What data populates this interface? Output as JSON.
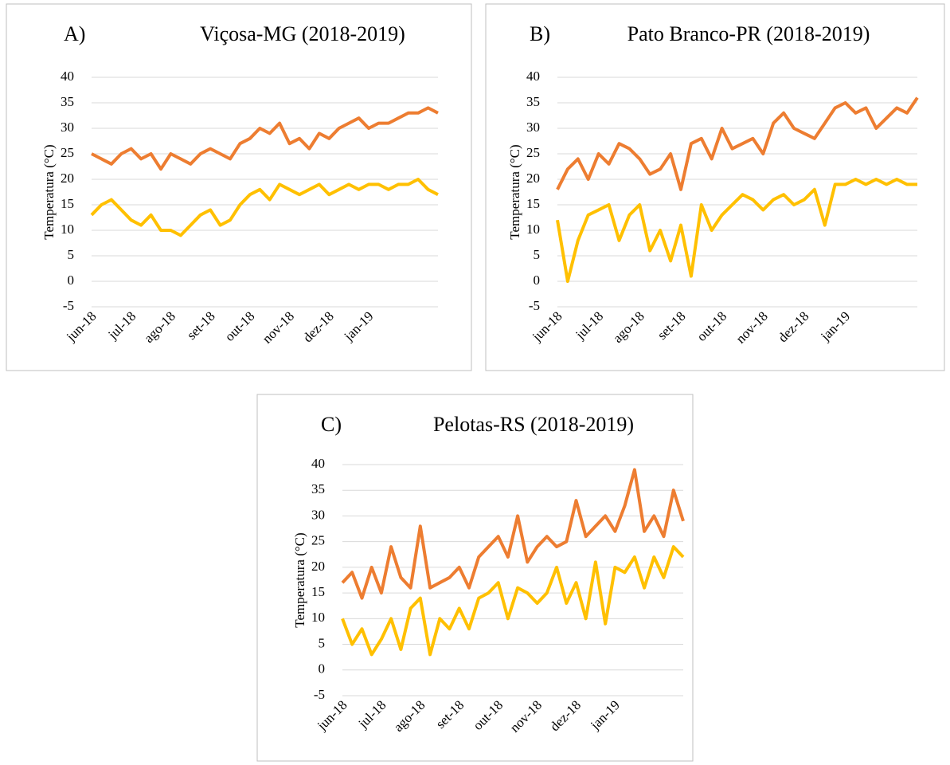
{
  "chart_data": [
    {
      "type": "line",
      "label": "A)",
      "title": "Viçosa-MG (2018-2019)",
      "ylabel": "Temperatura (°C)",
      "categories": [
        "jun-18",
        null,
        null,
        null,
        "jul-18",
        null,
        null,
        null,
        "ago-18",
        null,
        null,
        null,
        "set-18",
        null,
        null,
        null,
        "out-18",
        null,
        null,
        null,
        "nov-18",
        null,
        null,
        null,
        "dez-18",
        null,
        null,
        null,
        "jan-19",
        null,
        null,
        null,
        null,
        null,
        null,
        null
      ],
      "series": [
        {
          "color": "#ed7d31",
          "values": [
            25,
            24,
            23,
            25,
            26,
            24,
            25,
            22,
            25,
            24,
            23,
            25,
            26,
            25,
            24,
            27,
            28,
            30,
            29,
            31,
            27,
            28,
            26,
            29,
            28,
            30,
            31,
            32,
            30,
            31,
            31,
            32,
            33,
            33,
            34,
            33
          ]
        },
        {
          "color": "#ffc000",
          "values": [
            13,
            15,
            16,
            14,
            12,
            11,
            13,
            10,
            10,
            9,
            11,
            13,
            14,
            11,
            12,
            15,
            17,
            18,
            16,
            19,
            18,
            17,
            18,
            19,
            17,
            18,
            19,
            18,
            19,
            19,
            18,
            19,
            19,
            20,
            18,
            17
          ]
        }
      ],
      "ylim": [
        -5,
        40
      ],
      "yticks": [
        -5,
        0,
        5,
        10,
        15,
        20,
        25,
        30,
        35,
        40
      ],
      "grid": true
    },
    {
      "type": "line",
      "label": "B)",
      "title": "Pato Branco-PR (2018-2019)",
      "ylabel": "Temperatura (°C)",
      "categories": [
        "jun-18",
        null,
        null,
        null,
        "jul-18",
        null,
        null,
        null,
        "ago-18",
        null,
        null,
        null,
        "set-18",
        null,
        null,
        null,
        "out-18",
        null,
        null,
        null,
        "nov-18",
        null,
        null,
        null,
        "dez-18",
        null,
        null,
        null,
        "jan-19",
        null,
        null,
        null,
        null,
        null,
        null,
        null
      ],
      "series": [
        {
          "color": "#ed7d31",
          "values": [
            18,
            22,
            24,
            20,
            25,
            23,
            27,
            26,
            24,
            21,
            22,
            25,
            18,
            27,
            28,
            24,
            30,
            26,
            27,
            28,
            25,
            31,
            33,
            30,
            29,
            28,
            31,
            34,
            35,
            33,
            34,
            30,
            32,
            34,
            33,
            36
          ]
        },
        {
          "color": "#ffc000",
          "values": [
            12,
            0,
            8,
            13,
            14,
            15,
            8,
            13,
            15,
            6,
            10,
            4,
            11,
            1,
            15,
            10,
            13,
            15,
            17,
            16,
            14,
            16,
            17,
            15,
            16,
            18,
            11,
            19,
            19,
            20,
            19,
            20,
            19,
            20,
            19,
            19
          ]
        }
      ],
      "ylim": [
        -5,
        40
      ],
      "yticks": [
        -5,
        0,
        5,
        10,
        15,
        20,
        25,
        30,
        35,
        40
      ],
      "grid": true
    },
    {
      "type": "line",
      "label": "C)",
      "title": "Pelotas-RS (2018-2019)",
      "ylabel": "Temperatura (°C)",
      "categories": [
        "jun-18",
        null,
        null,
        null,
        "jul-18",
        null,
        null,
        null,
        "ago-18",
        null,
        null,
        null,
        "set-18",
        null,
        null,
        null,
        "out-18",
        null,
        null,
        null,
        "nov-18",
        null,
        null,
        null,
        "dez-18",
        null,
        null,
        null,
        "jan-19",
        null,
        null,
        null,
        null,
        null,
        null,
        null
      ],
      "series": [
        {
          "color": "#ed7d31",
          "values": [
            17,
            19,
            14,
            20,
            15,
            24,
            18,
            16,
            28,
            16,
            17,
            18,
            20,
            16,
            22,
            24,
            26,
            22,
            30,
            21,
            24,
            26,
            24,
            25,
            33,
            26,
            28,
            30,
            27,
            32,
            39,
            27,
            30,
            26,
            35,
            29
          ]
        },
        {
          "color": "#ffc000",
          "values": [
            10,
            5,
            8,
            3,
            6,
            10,
            4,
            12,
            14,
            3,
            10,
            8,
            12,
            8,
            14,
            15,
            17,
            10,
            16,
            15,
            13,
            15,
            20,
            13,
            17,
            10,
            21,
            9,
            20,
            19,
            22,
            16,
            22,
            18,
            24,
            22
          ]
        }
      ],
      "ylim": [
        -5,
        40
      ],
      "yticks": [
        -5,
        0,
        5,
        10,
        15,
        20,
        25,
        30,
        35,
        40
      ],
      "grid": true
    }
  ]
}
